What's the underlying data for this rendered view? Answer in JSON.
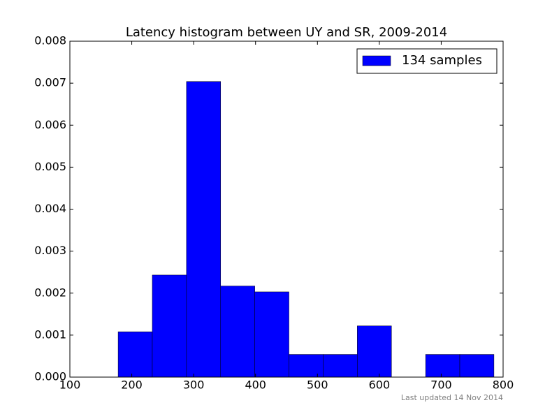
{
  "chart_data": {
    "type": "histogram",
    "title": "Latency histogram between UY and SR, 2009-2014",
    "annotation": "Last updated 14 Nov 2014",
    "bins": [
      178,
      233.2,
      288.4,
      343.6,
      398.8,
      454,
      509.2,
      564.4,
      619.6,
      674.8,
      730,
      785.2
    ],
    "series": [
      {
        "name": "134 samples",
        "color": "#0000ff",
        "values": [
          0.00108,
          0.00243,
          0.00704,
          0.00217,
          0.00203,
          0.00054,
          0.00054,
          0.00122,
          0,
          0.00054,
          0.00054
        ]
      }
    ],
    "xlim": [
      100,
      800
    ],
    "xticks": [
      100,
      200,
      300,
      400,
      500,
      600,
      700,
      800
    ],
    "ylim": [
      0,
      0.008
    ],
    "yticks": [
      {
        "value": 0,
        "label": "0.000"
      },
      {
        "value": 0.001,
        "label": "0.001"
      },
      {
        "value": 0.002,
        "label": "0.002"
      },
      {
        "value": 0.003,
        "label": "0.003"
      },
      {
        "value": 0.004,
        "label": "0.004"
      },
      {
        "value": 0.005,
        "label": "0.005"
      },
      {
        "value": 0.006,
        "label": "0.006"
      },
      {
        "value": 0.007,
        "label": "0.007"
      },
      {
        "value": 0.008,
        "label": "0.008"
      }
    ],
    "legend": "upper right",
    "grid": false
  }
}
